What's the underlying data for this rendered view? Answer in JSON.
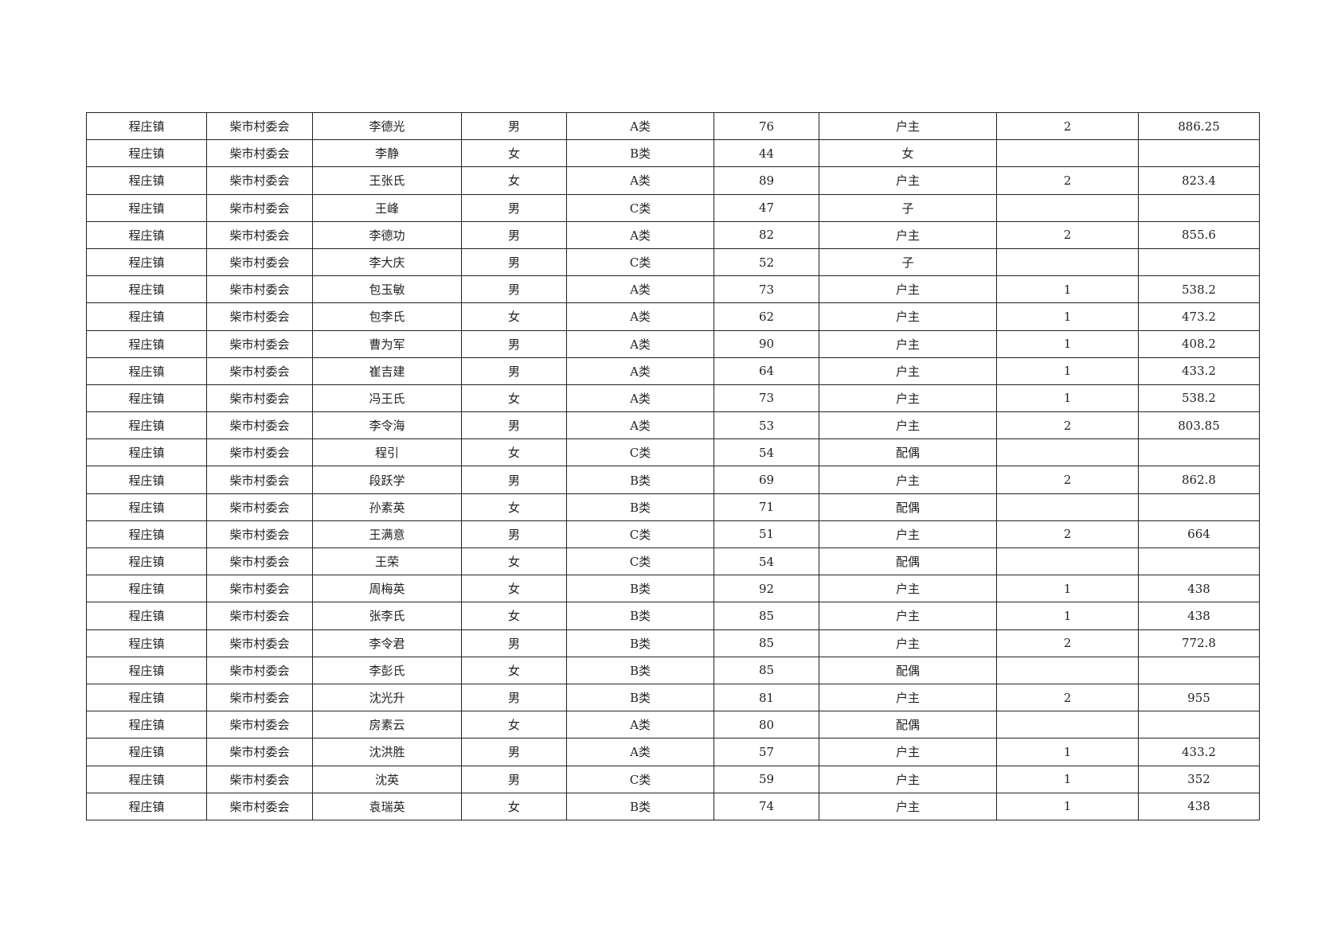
{
  "table": {
    "rows": [
      [
        "程庄镇",
        "柴市村委会",
        "李德光",
        "男",
        "A类",
        "76",
        "户主",
        "2",
        "886.25"
      ],
      [
        "程庄镇",
        "柴市村委会",
        "李静",
        "女",
        "B类",
        "44",
        "女",
        "",
        ""
      ],
      [
        "程庄镇",
        "柴市村委会",
        "王张氏",
        "女",
        "A类",
        "89",
        "户主",
        "2",
        "823.4"
      ],
      [
        "程庄镇",
        "柴市村委会",
        "王峰",
        "男",
        "C类",
        "47",
        "子",
        "",
        ""
      ],
      [
        "程庄镇",
        "柴市村委会",
        "李德功",
        "男",
        "A类",
        "82",
        "户主",
        "2",
        "855.6"
      ],
      [
        "程庄镇",
        "柴市村委会",
        "李大庆",
        "男",
        "C类",
        "52",
        "子",
        "",
        ""
      ],
      [
        "程庄镇",
        "柴市村委会",
        "包玉敏",
        "男",
        "A类",
        "73",
        "户主",
        "1",
        "538.2"
      ],
      [
        "程庄镇",
        "柴市村委会",
        "包李氏",
        "女",
        "A类",
        "62",
        "户主",
        "1",
        "473.2"
      ],
      [
        "程庄镇",
        "柴市村委会",
        "曹为军",
        "男",
        "A类",
        "90",
        "户主",
        "1",
        "408.2"
      ],
      [
        "程庄镇",
        "柴市村委会",
        "崔吉建",
        "男",
        "A类",
        "64",
        "户主",
        "1",
        "433.2"
      ],
      [
        "程庄镇",
        "柴市村委会",
        "冯王氏",
        "女",
        "A类",
        "73",
        "户主",
        "1",
        "538.2"
      ],
      [
        "程庄镇",
        "柴市村委会",
        "李令海",
        "男",
        "A类",
        "53",
        "户主",
        "2",
        "803.85"
      ],
      [
        "程庄镇",
        "柴市村委会",
        "程引",
        "女",
        "C类",
        "54",
        "配偶",
        "",
        ""
      ],
      [
        "程庄镇",
        "柴市村委会",
        "段跃学",
        "男",
        "B类",
        "69",
        "户主",
        "2",
        "862.8"
      ],
      [
        "程庄镇",
        "柴市村委会",
        "孙素英",
        "女",
        "B类",
        "71",
        "配偶",
        "",
        ""
      ],
      [
        "程庄镇",
        "柴市村委会",
        "王满意",
        "男",
        "C类",
        "51",
        "户主",
        "2",
        "664"
      ],
      [
        "程庄镇",
        "柴市村委会",
        "王荣",
        "女",
        "C类",
        "54",
        "配偶",
        "",
        ""
      ],
      [
        "程庄镇",
        "柴市村委会",
        "周梅英",
        "女",
        "B类",
        "92",
        "户主",
        "1",
        "438"
      ],
      [
        "程庄镇",
        "柴市村委会",
        "张李氏",
        "女",
        "B类",
        "85",
        "户主",
        "1",
        "438"
      ],
      [
        "程庄镇",
        "柴市村委会",
        "李令君",
        "男",
        "B类",
        "85",
        "户主",
        "2",
        "772.8"
      ],
      [
        "程庄镇",
        "柴市村委会",
        "李彭氏",
        "女",
        "B类",
        "85",
        "配偶",
        "",
        ""
      ],
      [
        "程庄镇",
        "柴市村委会",
        "沈光升",
        "男",
        "B类",
        "81",
        "户主",
        "2",
        "955"
      ],
      [
        "程庄镇",
        "柴市村委会",
        "房素云",
        "女",
        "A类",
        "80",
        "配偶",
        "",
        ""
      ],
      [
        "程庄镇",
        "柴市村委会",
        "沈洪胜",
        "男",
        "A类",
        "57",
        "户主",
        "1",
        "433.2"
      ],
      [
        "程庄镇",
        "柴市村委会",
        "沈英",
        "男",
        "C类",
        "59",
        "户主",
        "1",
        "352"
      ],
      [
        "程庄镇",
        "柴市村委会",
        "袁瑞英",
        "女",
        "B类",
        "74",
        "户主",
        "1",
        "438"
      ]
    ]
  }
}
